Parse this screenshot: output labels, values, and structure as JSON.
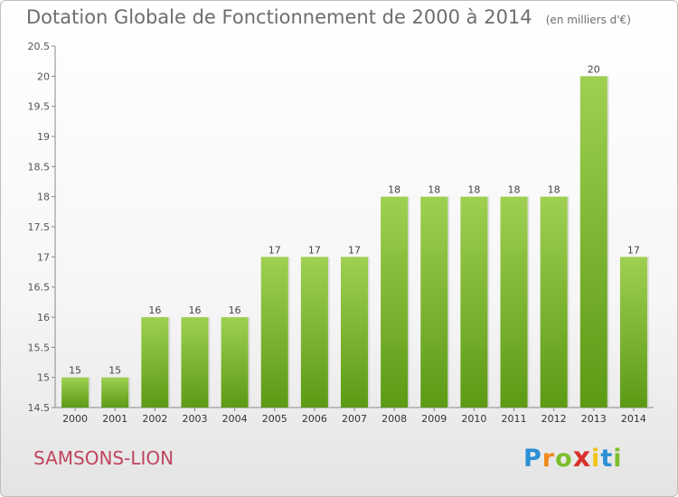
{
  "chart_data": {
    "type": "bar",
    "title": "Dotation Globale de Fonctionnement de 2000 à 2014",
    "subtitle": "(en milliers d'€)",
    "categories": [
      "2000",
      "2001",
      "2002",
      "2003",
      "2004",
      "2005",
      "2006",
      "2007",
      "2008",
      "2009",
      "2010",
      "2011",
      "2012",
      "2013",
      "2014"
    ],
    "values": [
      15,
      15,
      16,
      16,
      16,
      17,
      17,
      17,
      18,
      18,
      18,
      18,
      18,
      20,
      17
    ],
    "ylim": [
      14.5,
      20.5
    ],
    "yticks": [
      "14.5",
      "15",
      "15.5",
      "16",
      "16.5",
      "17",
      "17.5",
      "18",
      "18.5",
      "19",
      "19.5",
      "20",
      "20.5"
    ],
    "xlabel": "",
    "ylabel": "",
    "grid": false,
    "bar_color_top": "#9fd051",
    "bar_color_bottom": "#5c9a14"
  },
  "commune": "SAMSONS-LION",
  "logo": {
    "letters": [
      "P",
      "r",
      "o",
      "x",
      "i",
      "t",
      "i"
    ],
    "colors": [
      "#2a8fd6",
      "#f08a1c",
      "#7cbf2a",
      "#d9302c",
      "#f0c419",
      "#2a8fd6",
      "#7cbf2a"
    ]
  }
}
